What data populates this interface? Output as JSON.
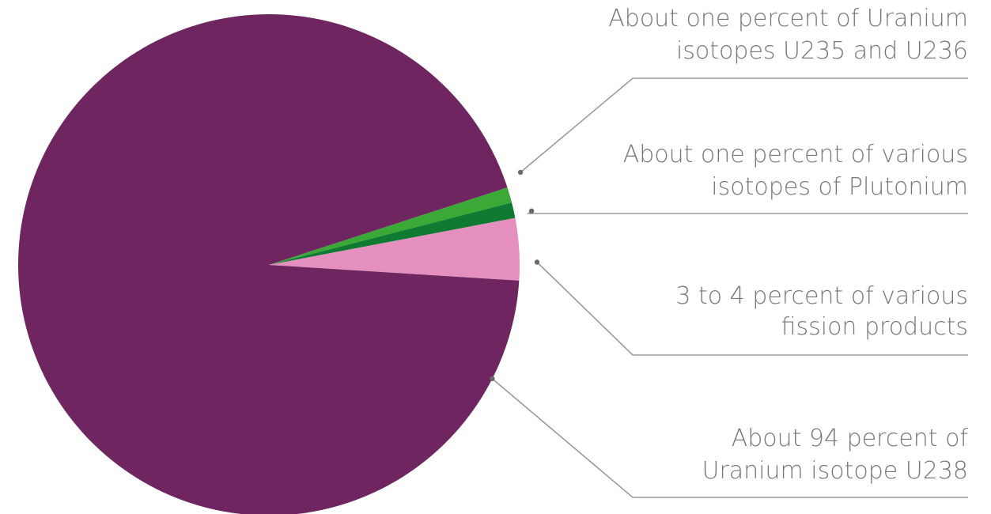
{
  "chart_data": {
    "type": "pie",
    "title": "",
    "unit": "percent",
    "slices": [
      {
        "label_lines": [
          "About one percent of Uranium",
          "isotopes U235 and U236"
        ],
        "value": 1,
        "color": "#3aa935"
      },
      {
        "label_lines": [
          "About one percent of various",
          "isotopes of Plutonium"
        ],
        "value": 1,
        "color": "#0e7a32"
      },
      {
        "label_lines": [
          "3 to 4 percent of various",
          "fission products"
        ],
        "value": 4,
        "color": "#e58fbe"
      },
      {
        "label_lines": [
          "About 94 percent of",
          "Uranium isotope U238"
        ],
        "value": 94,
        "color": "#6e2560"
      }
    ],
    "start_angle_deg": 18,
    "label_color": "#777777",
    "leader_color": "#9a9a9a"
  }
}
